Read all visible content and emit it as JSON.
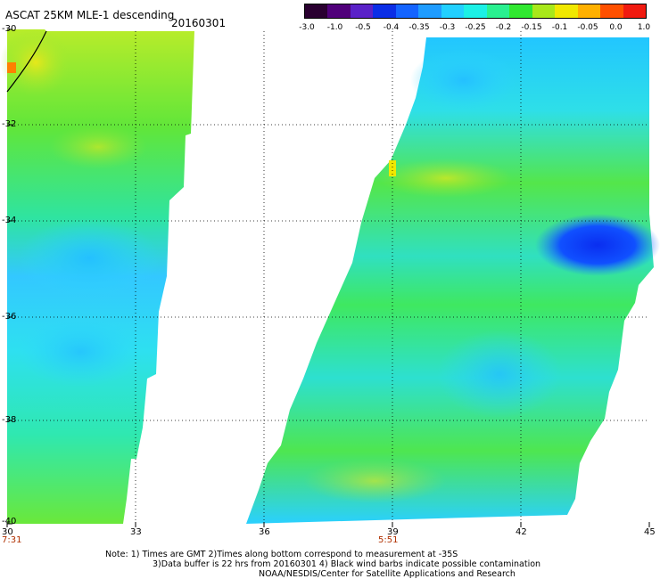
{
  "header": {
    "title": "ASCAT 25KM MLE-1 descending",
    "date": "20160301"
  },
  "colorbar": {
    "labels": [
      "-3.0",
      "-1.0",
      "-0.5",
      "-0.4",
      "-0.35",
      "-0.3",
      "-0.25",
      "-0.2",
      "-0.15",
      "-0.1",
      "-0.05",
      "0.0",
      "1.0"
    ],
    "colors": [
      "#2a0030",
      "#50007a",
      "#5a22c8",
      "#0b2ee6",
      "#1464ff",
      "#1f9cff",
      "#22d0ff",
      "#1cf0e6",
      "#2af090",
      "#30e830",
      "#a8e81a",
      "#f0e800",
      "#ffb000",
      "#ff5000",
      "#f01a10"
    ]
  },
  "map": {
    "lon_ticks": [
      "30",
      "33",
      "36",
      "39",
      "42",
      "45"
    ],
    "lat_ticks": [
      "-30",
      "-32",
      "-34",
      "-36",
      "-38",
      "-40"
    ],
    "lon_range": [
      30,
      45
    ],
    "lat_range": [
      -30,
      -40
    ],
    "gridlines": true,
    "swath_times": [
      "7:31",
      "5:51"
    ]
  },
  "notes": {
    "line1": "Note: 1) Times are GMT 2)Times along bottom correspond to measurement at -35S",
    "line2": "3)Data buffer is 22 hrs from 20160301 4) Black wind barbs indicate possible contamination",
    "line3": "NOAA/NESDIS/Center for Satellite Applications and Research"
  }
}
